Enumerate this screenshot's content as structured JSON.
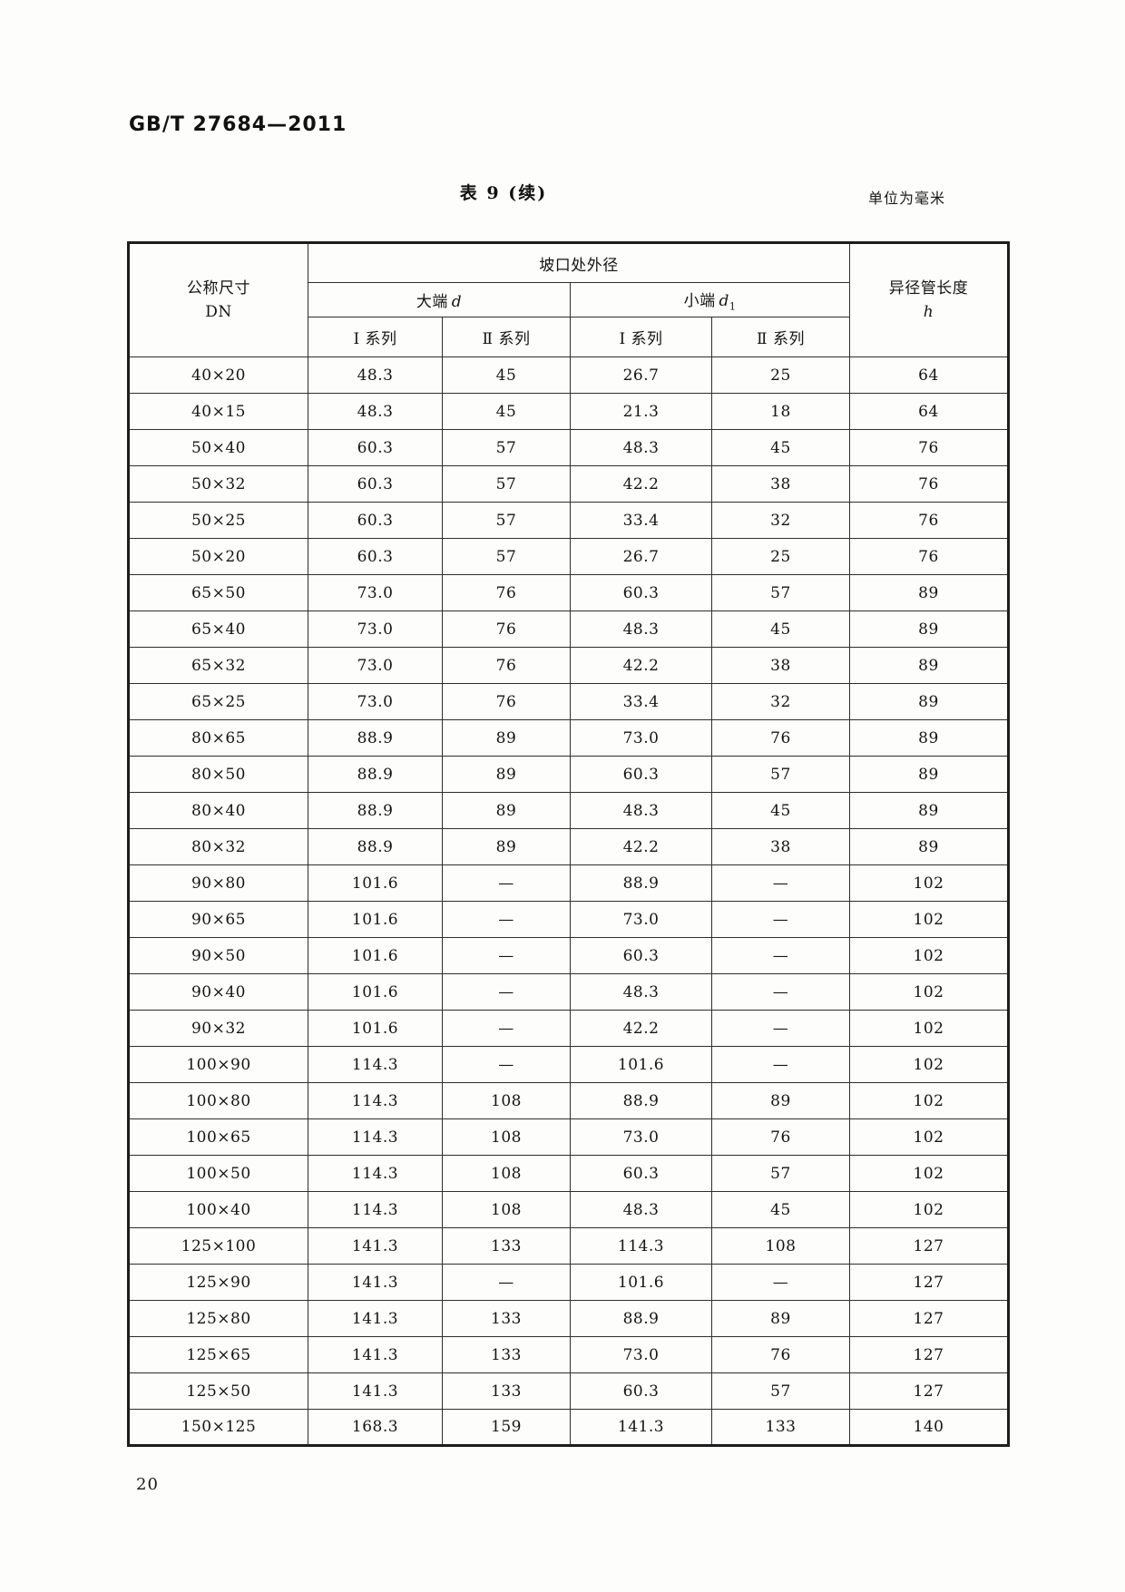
{
  "page": {
    "standard_number": "GB/T 27684—2011",
    "page_number": "20"
  },
  "table": {
    "caption": "表 9 (续)",
    "unit_note": "单位为毫米",
    "header": {
      "dn_line1": "公称尺寸",
      "dn_line2": "DN",
      "groove_od": "坡口处外径",
      "large_end_label": "大端",
      "large_end_var": "d",
      "small_end_label": "小端",
      "small_end_var": "d",
      "small_end_sub": "1",
      "series": [
        "Ⅰ 系列",
        "Ⅱ 系列",
        "Ⅰ 系列",
        "Ⅱ 系列"
      ],
      "length_line1": "异径管长度",
      "length_var": "h"
    },
    "rows": [
      [
        "40×20",
        "48.3",
        "45",
        "26.7",
        "25",
        "64"
      ],
      [
        "40×15",
        "48.3",
        "45",
        "21.3",
        "18",
        "64"
      ],
      [
        "50×40",
        "60.3",
        "57",
        "48.3",
        "45",
        "76"
      ],
      [
        "50×32",
        "60.3",
        "57",
        "42.2",
        "38",
        "76"
      ],
      [
        "50×25",
        "60.3",
        "57",
        "33.4",
        "32",
        "76"
      ],
      [
        "50×20",
        "60.3",
        "57",
        "26.7",
        "25",
        "76"
      ],
      [
        "65×50",
        "73.0",
        "76",
        "60.3",
        "57",
        "89"
      ],
      [
        "65×40",
        "73.0",
        "76",
        "48.3",
        "45",
        "89"
      ],
      [
        "65×32",
        "73.0",
        "76",
        "42.2",
        "38",
        "89"
      ],
      [
        "65×25",
        "73.0",
        "76",
        "33.4",
        "32",
        "89"
      ],
      [
        "80×65",
        "88.9",
        "89",
        "73.0",
        "76",
        "89"
      ],
      [
        "80×50",
        "88.9",
        "89",
        "60.3",
        "57",
        "89"
      ],
      [
        "80×40",
        "88.9",
        "89",
        "48.3",
        "45",
        "89"
      ],
      [
        "80×32",
        "88.9",
        "89",
        "42.2",
        "38",
        "89"
      ],
      [
        "90×80",
        "101.6",
        "—",
        "88.9",
        "—",
        "102"
      ],
      [
        "90×65",
        "101.6",
        "—",
        "73.0",
        "—",
        "102"
      ],
      [
        "90×50",
        "101.6",
        "—",
        "60.3",
        "—",
        "102"
      ],
      [
        "90×40",
        "101.6",
        "—",
        "48.3",
        "—",
        "102"
      ],
      [
        "90×32",
        "101.6",
        "—",
        "42.2",
        "—",
        "102"
      ],
      [
        "100×90",
        "114.3",
        "—",
        "101.6",
        "—",
        "102"
      ],
      [
        "100×80",
        "114.3",
        "108",
        "88.9",
        "89",
        "102"
      ],
      [
        "100×65",
        "114.3",
        "108",
        "73.0",
        "76",
        "102"
      ],
      [
        "100×50",
        "114.3",
        "108",
        "60.3",
        "57",
        "102"
      ],
      [
        "100×40",
        "114.3",
        "108",
        "48.3",
        "45",
        "102"
      ],
      [
        "125×100",
        "141.3",
        "133",
        "114.3",
        "108",
        "127"
      ],
      [
        "125×90",
        "141.3",
        "—",
        "101.6",
        "—",
        "127"
      ],
      [
        "125×80",
        "141.3",
        "133",
        "88.9",
        "89",
        "127"
      ],
      [
        "125×65",
        "141.3",
        "133",
        "73.0",
        "76",
        "127"
      ],
      [
        "125×50",
        "141.3",
        "133",
        "60.3",
        "57",
        "127"
      ],
      [
        "150×125",
        "168.3",
        "159",
        "141.3",
        "133",
        "140"
      ]
    ]
  }
}
